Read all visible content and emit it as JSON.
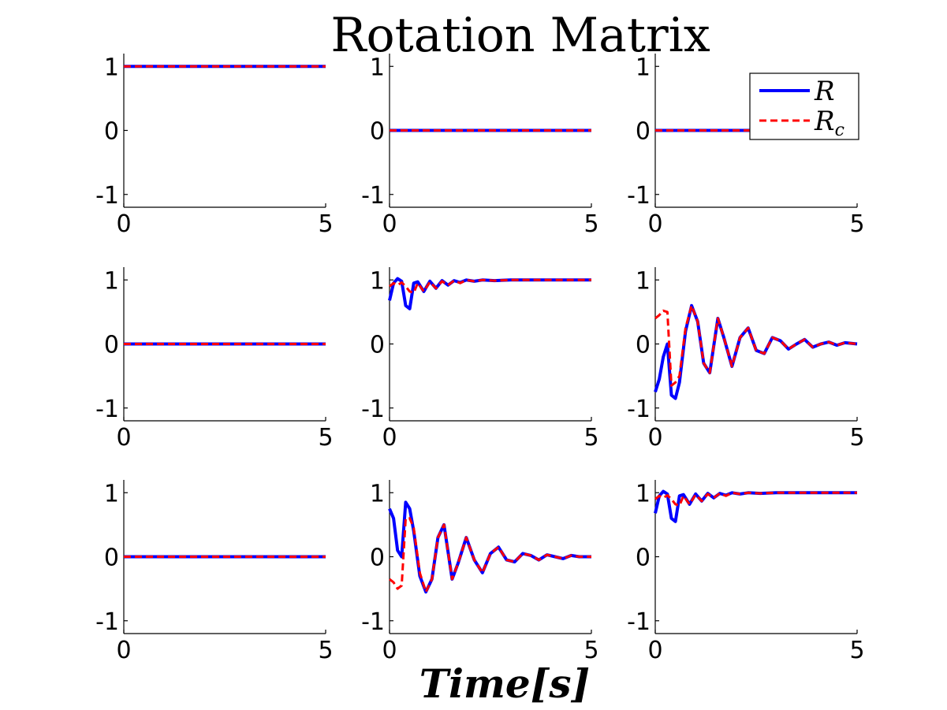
{
  "figure": {
    "title": "Rotation Matrix",
    "xlabel": "Time[s]"
  },
  "legend": {
    "entries": [
      {
        "label": "R",
        "subscript": "",
        "color": "#0000ff",
        "style": "solid"
      },
      {
        "label": "R",
        "subscript": "c",
        "color": "#ff0000",
        "style": "dashed"
      }
    ]
  },
  "chart_data": [
    {
      "type": "line",
      "xlim": [
        0,
        5
      ],
      "ylim": [
        -1.2,
        1.2
      ],
      "xticks": [
        "0",
        "5"
      ],
      "yticks": [
        "1",
        "0",
        "-1"
      ],
      "series": [
        {
          "name": "R",
          "x": [
            0,
            5
          ],
          "y": [
            1,
            1
          ]
        },
        {
          "name": "R_c",
          "x": [
            0,
            5
          ],
          "y": [
            1,
            1
          ]
        }
      ]
    },
    {
      "type": "line",
      "xlim": [
        0,
        5
      ],
      "ylim": [
        -1.2,
        1.2
      ],
      "xticks": [
        "0",
        "5"
      ],
      "yticks": [
        "1",
        "0",
        "-1"
      ],
      "series": [
        {
          "name": "R",
          "x": [
            0,
            5
          ],
          "y": [
            0,
            0
          ]
        },
        {
          "name": "R_c",
          "x": [
            0,
            5
          ],
          "y": [
            0,
            0
          ]
        }
      ]
    },
    {
      "type": "line",
      "xlim": [
        0,
        5
      ],
      "ylim": [
        -1.2,
        1.2
      ],
      "xticks": [
        "0",
        "5"
      ],
      "yticks": [
        "1",
        "0",
        "-1"
      ],
      "legend": "top-right",
      "series": [
        {
          "name": "R",
          "x": [
            0,
            5
          ],
          "y": [
            0,
            0
          ]
        },
        {
          "name": "R_c",
          "x": [
            0,
            5
          ],
          "y": [
            0,
            0
          ]
        }
      ]
    },
    {
      "type": "line",
      "xlim": [
        0,
        5
      ],
      "ylim": [
        -1.2,
        1.2
      ],
      "xticks": [
        "0",
        "5"
      ],
      "yticks": [
        "1",
        "0",
        "-1"
      ],
      "series": [
        {
          "name": "R",
          "x": [
            0,
            5
          ],
          "y": [
            0,
            0
          ]
        },
        {
          "name": "R_c",
          "x": [
            0,
            5
          ],
          "y": [
            0,
            0
          ]
        }
      ]
    },
    {
      "type": "line",
      "xlim": [
        0,
        5
      ],
      "ylim": [
        -1.2,
        1.2
      ],
      "xticks": [
        "0",
        "5"
      ],
      "yticks": [
        "1",
        "0",
        "-1"
      ],
      "series": [
        {
          "name": "R",
          "x": [
            0,
            0.1,
            0.2,
            0.3,
            0.4,
            0.5,
            0.6,
            0.7,
            0.85,
            1.0,
            1.15,
            1.3,
            1.45,
            1.6,
            1.75,
            1.9,
            2.1,
            2.3,
            2.6,
            3.0,
            5
          ],
          "y": [
            0.68,
            0.95,
            1.02,
            0.98,
            0.6,
            0.55,
            0.95,
            0.97,
            0.82,
            0.98,
            0.87,
            0.99,
            0.92,
            0.99,
            0.96,
            1.0,
            0.98,
            1.0,
            0.99,
            1.0,
            1.0
          ]
        },
        {
          "name": "R_c",
          "x": [
            0,
            0.1,
            0.2,
            0.3,
            0.4,
            0.5,
            0.6,
            0.7,
            0.85,
            1.0,
            1.15,
            1.3,
            1.45,
            1.6,
            1.75,
            1.9,
            2.1,
            2.3,
            2.6,
            3.0,
            5
          ],
          "y": [
            0.9,
            0.95,
            0.92,
            0.96,
            0.9,
            0.82,
            0.8,
            0.95,
            0.82,
            0.97,
            0.87,
            0.98,
            0.92,
            0.99,
            0.95,
            1.0,
            0.98,
            1.0,
            0.99,
            1.0,
            1.0
          ]
        }
      ]
    },
    {
      "type": "line",
      "xlim": [
        0,
        5
      ],
      "ylim": [
        -1.2,
        1.2
      ],
      "xticks": [
        "0",
        "5"
      ],
      "yticks": [
        "1",
        "0",
        "-1"
      ],
      "series": [
        {
          "name": "R",
          "x": [
            0,
            0.1,
            0.2,
            0.3,
            0.4,
            0.5,
            0.6,
            0.75,
            0.9,
            1.05,
            1.2,
            1.35,
            1.55,
            1.7,
            1.9,
            2.1,
            2.3,
            2.5,
            2.7,
            2.9,
            3.1,
            3.3,
            3.5,
            3.7,
            3.9,
            4.1,
            4.3,
            4.5,
            4.7,
            5
          ],
          "y": [
            -0.75,
            -0.55,
            -0.2,
            0.0,
            -0.8,
            -0.85,
            -0.6,
            0.2,
            0.6,
            0.35,
            -0.3,
            -0.45,
            0.4,
            0.1,
            -0.35,
            0.1,
            0.25,
            -0.1,
            -0.15,
            0.1,
            0.05,
            -0.08,
            0.0,
            0.07,
            -0.05,
            0.0,
            0.03,
            -0.02,
            0.02,
            0.0
          ]
        },
        {
          "name": "R_c",
          "x": [
            0,
            0.1,
            0.2,
            0.3,
            0.4,
            0.5,
            0.6,
            0.75,
            0.9,
            1.05,
            1.2,
            1.35,
            1.55,
            1.7,
            1.9,
            2.1,
            2.3,
            2.5,
            2.7,
            2.9,
            3.1,
            3.3,
            3.5,
            3.7,
            3.9,
            4.1,
            4.3,
            4.5,
            4.7,
            5
          ],
          "y": [
            0.4,
            0.45,
            0.52,
            0.5,
            -0.65,
            -0.6,
            -0.5,
            0.25,
            0.6,
            0.35,
            -0.3,
            -0.45,
            0.4,
            0.1,
            -0.35,
            0.1,
            0.25,
            -0.1,
            -0.15,
            0.1,
            0.05,
            -0.08,
            0.0,
            0.07,
            -0.05,
            0.0,
            0.03,
            -0.02,
            0.02,
            0.0
          ]
        }
      ]
    },
    {
      "type": "line",
      "xlim": [
        0,
        5
      ],
      "ylim": [
        -1.2,
        1.2
      ],
      "xticks": [
        "0",
        "5"
      ],
      "yticks": [
        "1",
        "0",
        "-1"
      ],
      "series": [
        {
          "name": "R",
          "x": [
            0,
            5
          ],
          "y": [
            0,
            0
          ]
        },
        {
          "name": "R_c",
          "x": [
            0,
            5
          ],
          "y": [
            0,
            0
          ]
        }
      ]
    },
    {
      "type": "line",
      "xlim": [
        0,
        5
      ],
      "ylim": [
        -1.2,
        1.2
      ],
      "xticks": [
        "0",
        "5"
      ],
      "yticks": [
        "1",
        "0",
        "-1"
      ],
      "series": [
        {
          "name": "R",
          "x": [
            0,
            0.1,
            0.2,
            0.3,
            0.4,
            0.5,
            0.6,
            0.75,
            0.9,
            1.05,
            1.2,
            1.35,
            1.55,
            1.7,
            1.9,
            2.1,
            2.3,
            2.5,
            2.7,
            2.9,
            3.1,
            3.3,
            3.5,
            3.7,
            3.9,
            4.1,
            4.3,
            4.5,
            4.7,
            5
          ],
          "y": [
            0.75,
            0.6,
            0.1,
            0.0,
            0.85,
            0.75,
            0.4,
            -0.3,
            -0.55,
            -0.35,
            0.3,
            0.5,
            -0.35,
            -0.1,
            0.3,
            -0.05,
            -0.25,
            0.05,
            0.15,
            -0.05,
            -0.08,
            0.05,
            0.02,
            -0.05,
            0.03,
            0.0,
            -0.03,
            0.02,
            0.0,
            0.0
          ]
        },
        {
          "name": "R_c",
          "x": [
            0,
            0.1,
            0.2,
            0.3,
            0.4,
            0.5,
            0.6,
            0.75,
            0.9,
            1.05,
            1.2,
            1.35,
            1.55,
            1.7,
            1.9,
            2.1,
            2.3,
            2.5,
            2.7,
            2.9,
            3.1,
            3.3,
            3.5,
            3.7,
            3.9,
            4.1,
            4.3,
            4.5,
            4.7,
            5
          ],
          "y": [
            -0.35,
            -0.4,
            -0.5,
            -0.45,
            0.6,
            0.6,
            0.45,
            -0.25,
            -0.55,
            -0.35,
            0.3,
            0.5,
            -0.35,
            -0.1,
            0.3,
            -0.05,
            -0.25,
            0.05,
            0.15,
            -0.05,
            -0.08,
            0.05,
            0.02,
            -0.05,
            0.03,
            0.0,
            -0.03,
            0.02,
            0.0,
            0.0
          ]
        }
      ]
    },
    {
      "type": "line",
      "xlim": [
        0,
        5
      ],
      "ylim": [
        -1.2,
        1.2
      ],
      "xticks": [
        "0",
        "5"
      ],
      "yticks": [
        "1",
        "0",
        "-1"
      ],
      "series": [
        {
          "name": "R",
          "x": [
            0,
            0.1,
            0.2,
            0.3,
            0.4,
            0.5,
            0.6,
            0.7,
            0.85,
            1.0,
            1.15,
            1.3,
            1.45,
            1.6,
            1.75,
            1.9,
            2.1,
            2.3,
            2.6,
            3.0,
            5
          ],
          "y": [
            0.68,
            0.95,
            1.02,
            0.98,
            0.6,
            0.55,
            0.95,
            0.97,
            0.82,
            0.98,
            0.87,
            0.99,
            0.92,
            0.99,
            0.96,
            1.0,
            0.98,
            1.0,
            0.99,
            1.0,
            1.0
          ]
        },
        {
          "name": "R_c",
          "x": [
            0,
            0.1,
            0.2,
            0.3,
            0.4,
            0.5,
            0.6,
            0.7,
            0.85,
            1.0,
            1.15,
            1.3,
            1.45,
            1.6,
            1.75,
            1.9,
            2.1,
            2.3,
            2.6,
            3.0,
            5
          ],
          "y": [
            0.9,
            0.95,
            0.92,
            0.96,
            0.9,
            0.82,
            0.8,
            0.95,
            0.82,
            0.97,
            0.87,
            0.98,
            0.92,
            0.99,
            0.95,
            1.0,
            0.98,
            1.0,
            0.99,
            1.0,
            1.0
          ]
        }
      ]
    }
  ]
}
